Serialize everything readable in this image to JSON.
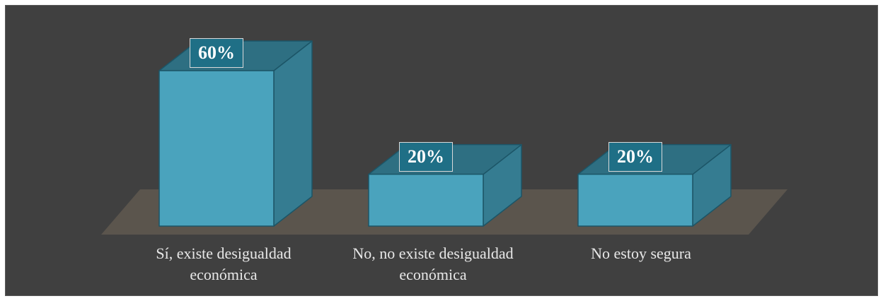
{
  "chart_data": {
    "type": "bar",
    "style": "3d-column",
    "categories": [
      "Sí, existe desigualdad económica",
      "No, no existe desigualdad económica",
      "No estoy segura"
    ],
    "values": [
      60,
      20,
      20
    ],
    "value_labels": [
      "60%",
      "20%",
      "20%"
    ],
    "title": "",
    "xlabel": "",
    "ylabel": "",
    "ylim": [
      0,
      60
    ],
    "grid": false,
    "legend": "none"
  },
  "colors": {
    "background": "#404040",
    "floor": "#5b554d",
    "bar_front": "#4aa3bd",
    "bar_side": "#357c91",
    "bar_top": "#2e6f82",
    "bar_edge": "#1c5567",
    "label_box": "#1f6f86"
  }
}
